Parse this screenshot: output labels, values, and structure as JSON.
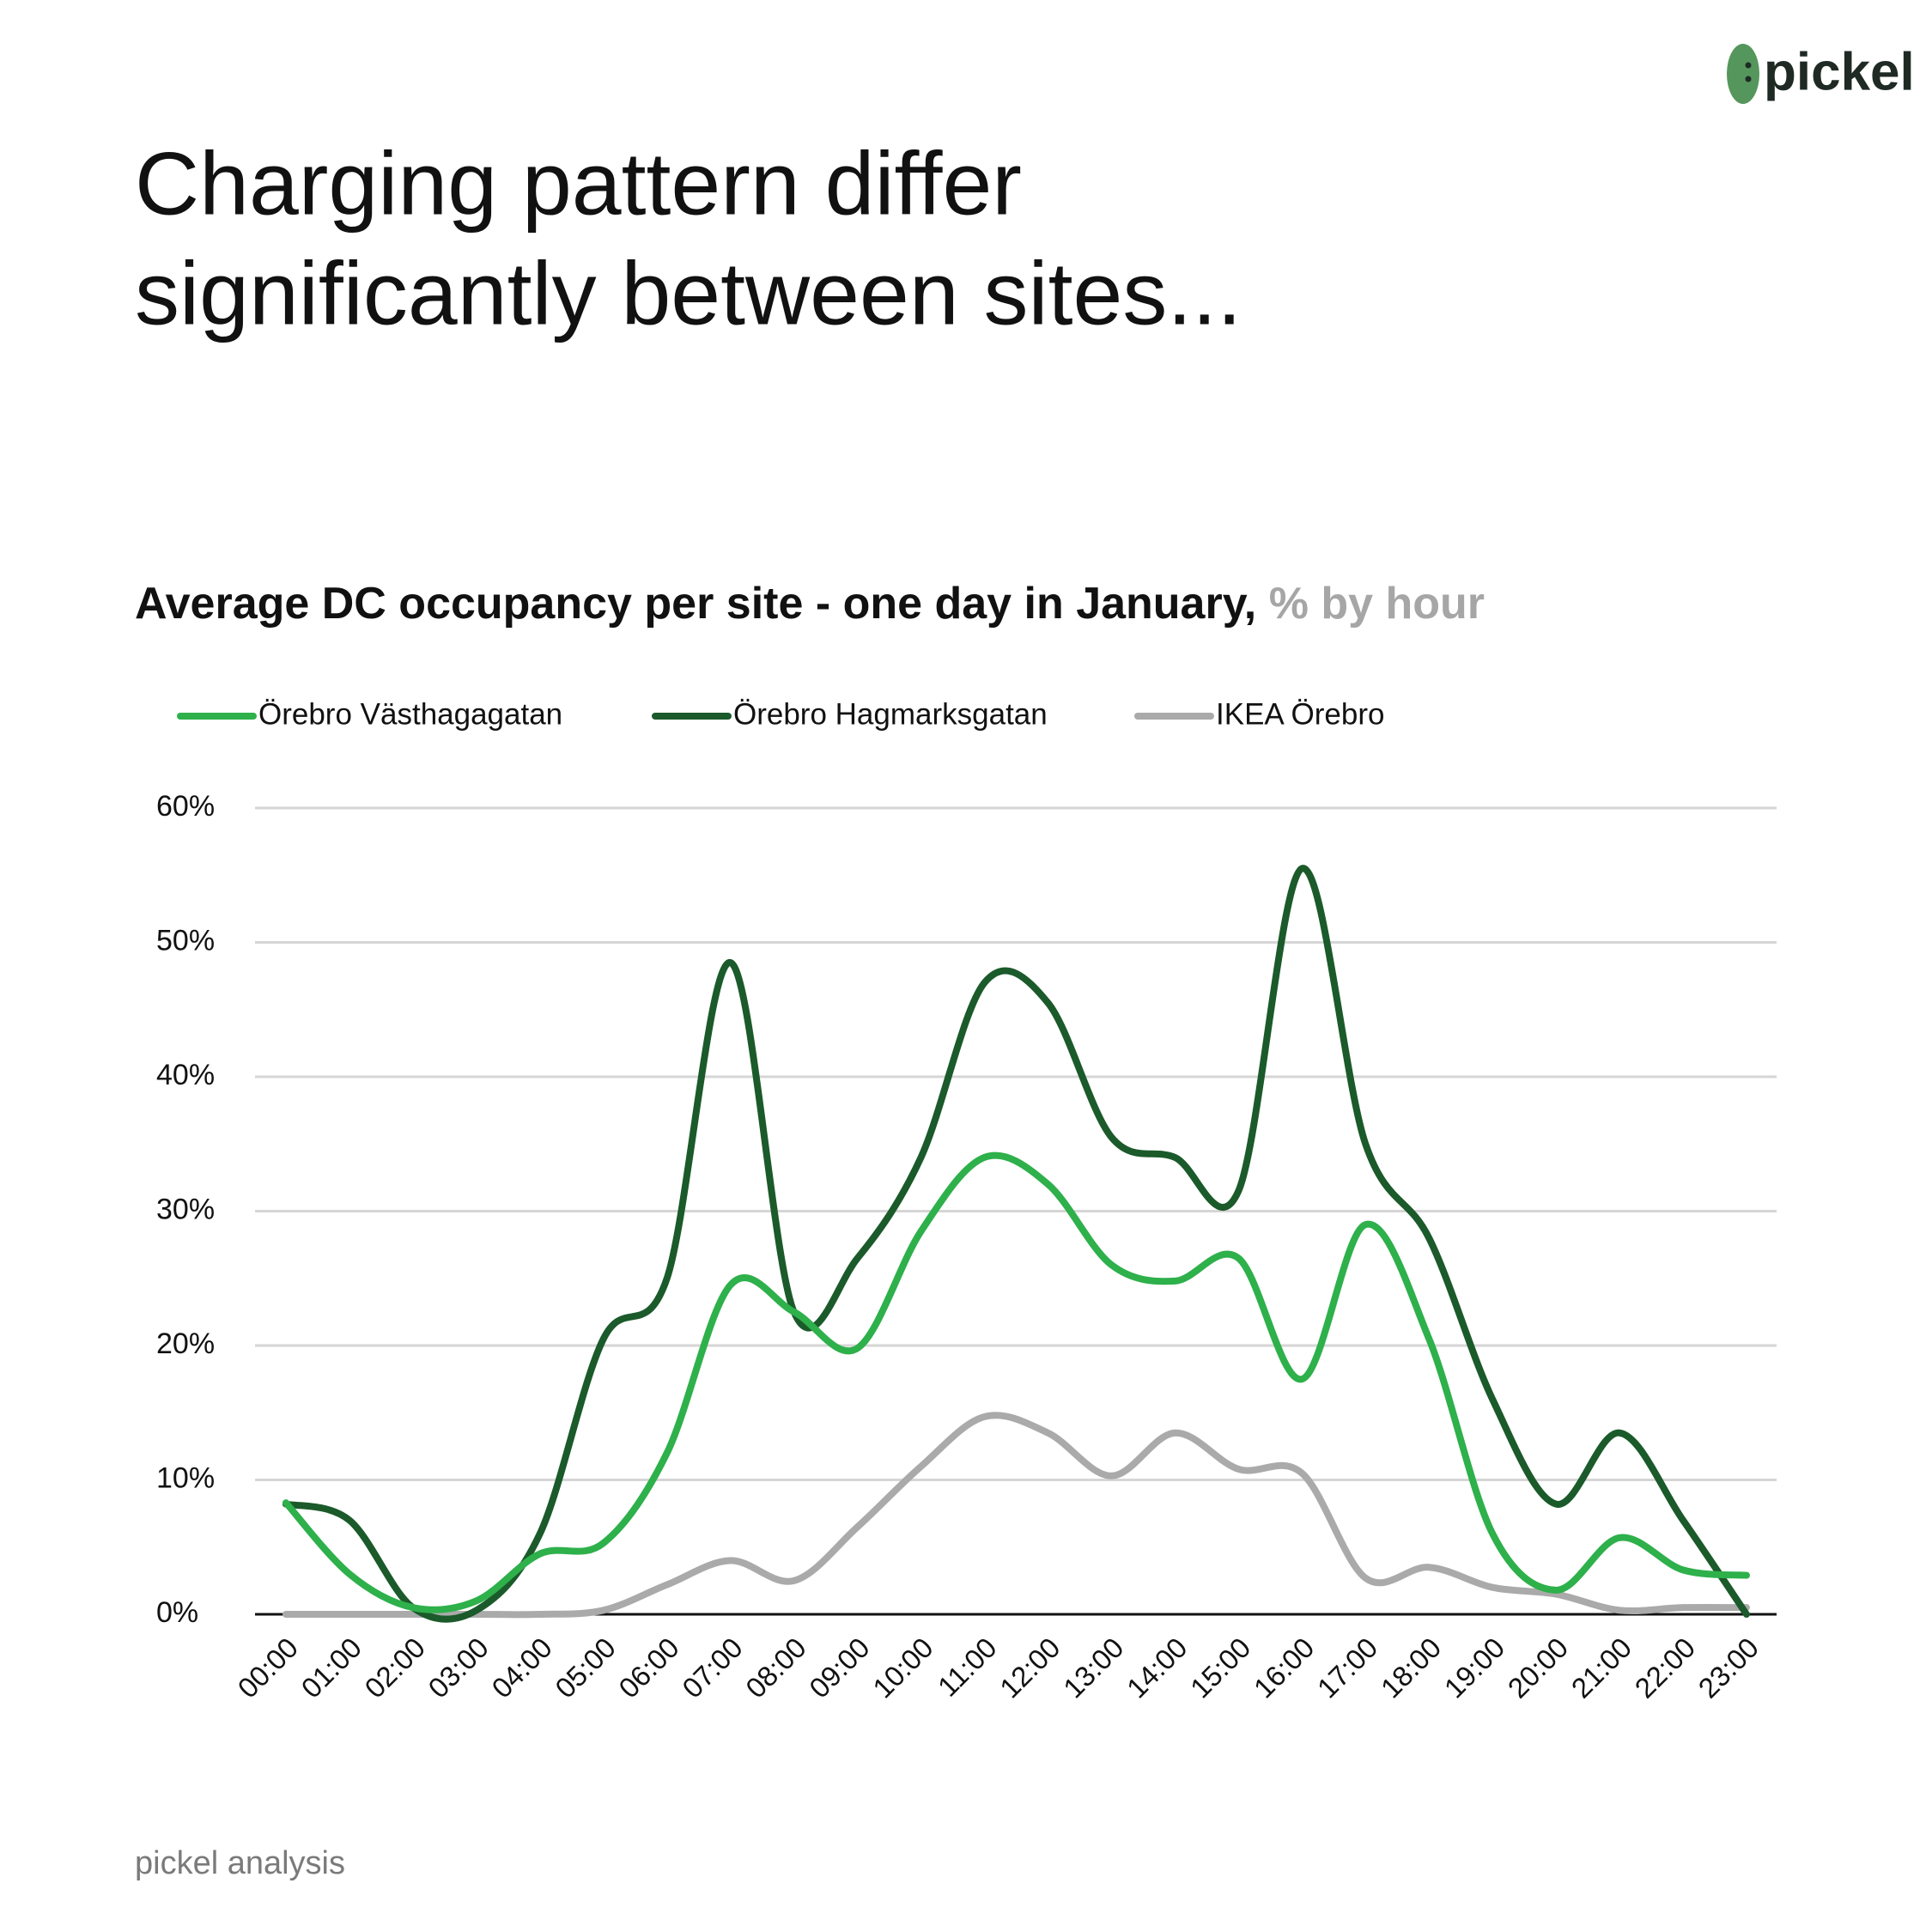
{
  "logo": "pickel",
  "chart_data": {
    "type": "line",
    "title_lines": [
      "Charging pattern differ",
      "significantly between sites..."
    ],
    "subtitle": "Average DC occupancy per site - one day in January,",
    "subtitle_unit": "% by hour",
    "categories": [
      "00:00",
      "01:00",
      "02:00",
      "03:00",
      "04:00",
      "05:00",
      "06:00",
      "07:00",
      "08:00",
      "09:00",
      "10:00",
      "11:00",
      "12:00",
      "13:00",
      "14:00",
      "15:00",
      "16:00",
      "17:00",
      "18:00",
      "19:00",
      "20:00",
      "21:00",
      "22:00",
      "23:00"
    ],
    "series": [
      {
        "name": "Örebro Västhagagatan",
        "color": "#2eb04b",
        "values": [
          8.3,
          3,
          0.5,
          1,
          4.5,
          5.3,
          12,
          24.5,
          22.5,
          19.8,
          28.5,
          34,
          32,
          26,
          24.8,
          26.5,
          17.5,
          29,
          20.5,
          6,
          1.8,
          5.7,
          3.3,
          2.9
        ]
      },
      {
        "name": "Örebro Hagmarksgatan",
        "color": "#1b5a2a",
        "values": [
          8.2,
          7,
          0.5,
          0.3,
          6,
          20.5,
          25,
          48.5,
          22.5,
          26.5,
          34,
          47,
          45.5,
          35.5,
          34,
          31.5,
          55.5,
          35,
          28,
          16,
          8.2,
          13.5,
          7,
          0
        ]
      },
      {
        "name": "IKEA Örebro",
        "color": "#aaaaaa",
        "values": [
          0,
          0,
          0,
          0,
          0,
          0.3,
          2.2,
          4,
          2.5,
          6.5,
          11,
          14.7,
          13.5,
          10.3,
          13.5,
          10.8,
          10.5,
          2.7,
          3.5,
          2,
          1.5,
          0.3,
          0.5,
          0.5
        ]
      }
    ],
    "ylim": [
      0,
      60
    ],
    "yticks": [
      {
        "value": 0,
        "label": "0%"
      },
      {
        "value": 10,
        "label": "10%"
      },
      {
        "value": 20,
        "label": "20%"
      },
      {
        "value": 30,
        "label": "30%"
      },
      {
        "value": 40,
        "label": "40%"
      },
      {
        "value": 50,
        "label": "50%"
      },
      {
        "value": 60,
        "label": "60%"
      }
    ],
    "grid": true,
    "smooth": true,
    "source": "pickel analysis"
  }
}
